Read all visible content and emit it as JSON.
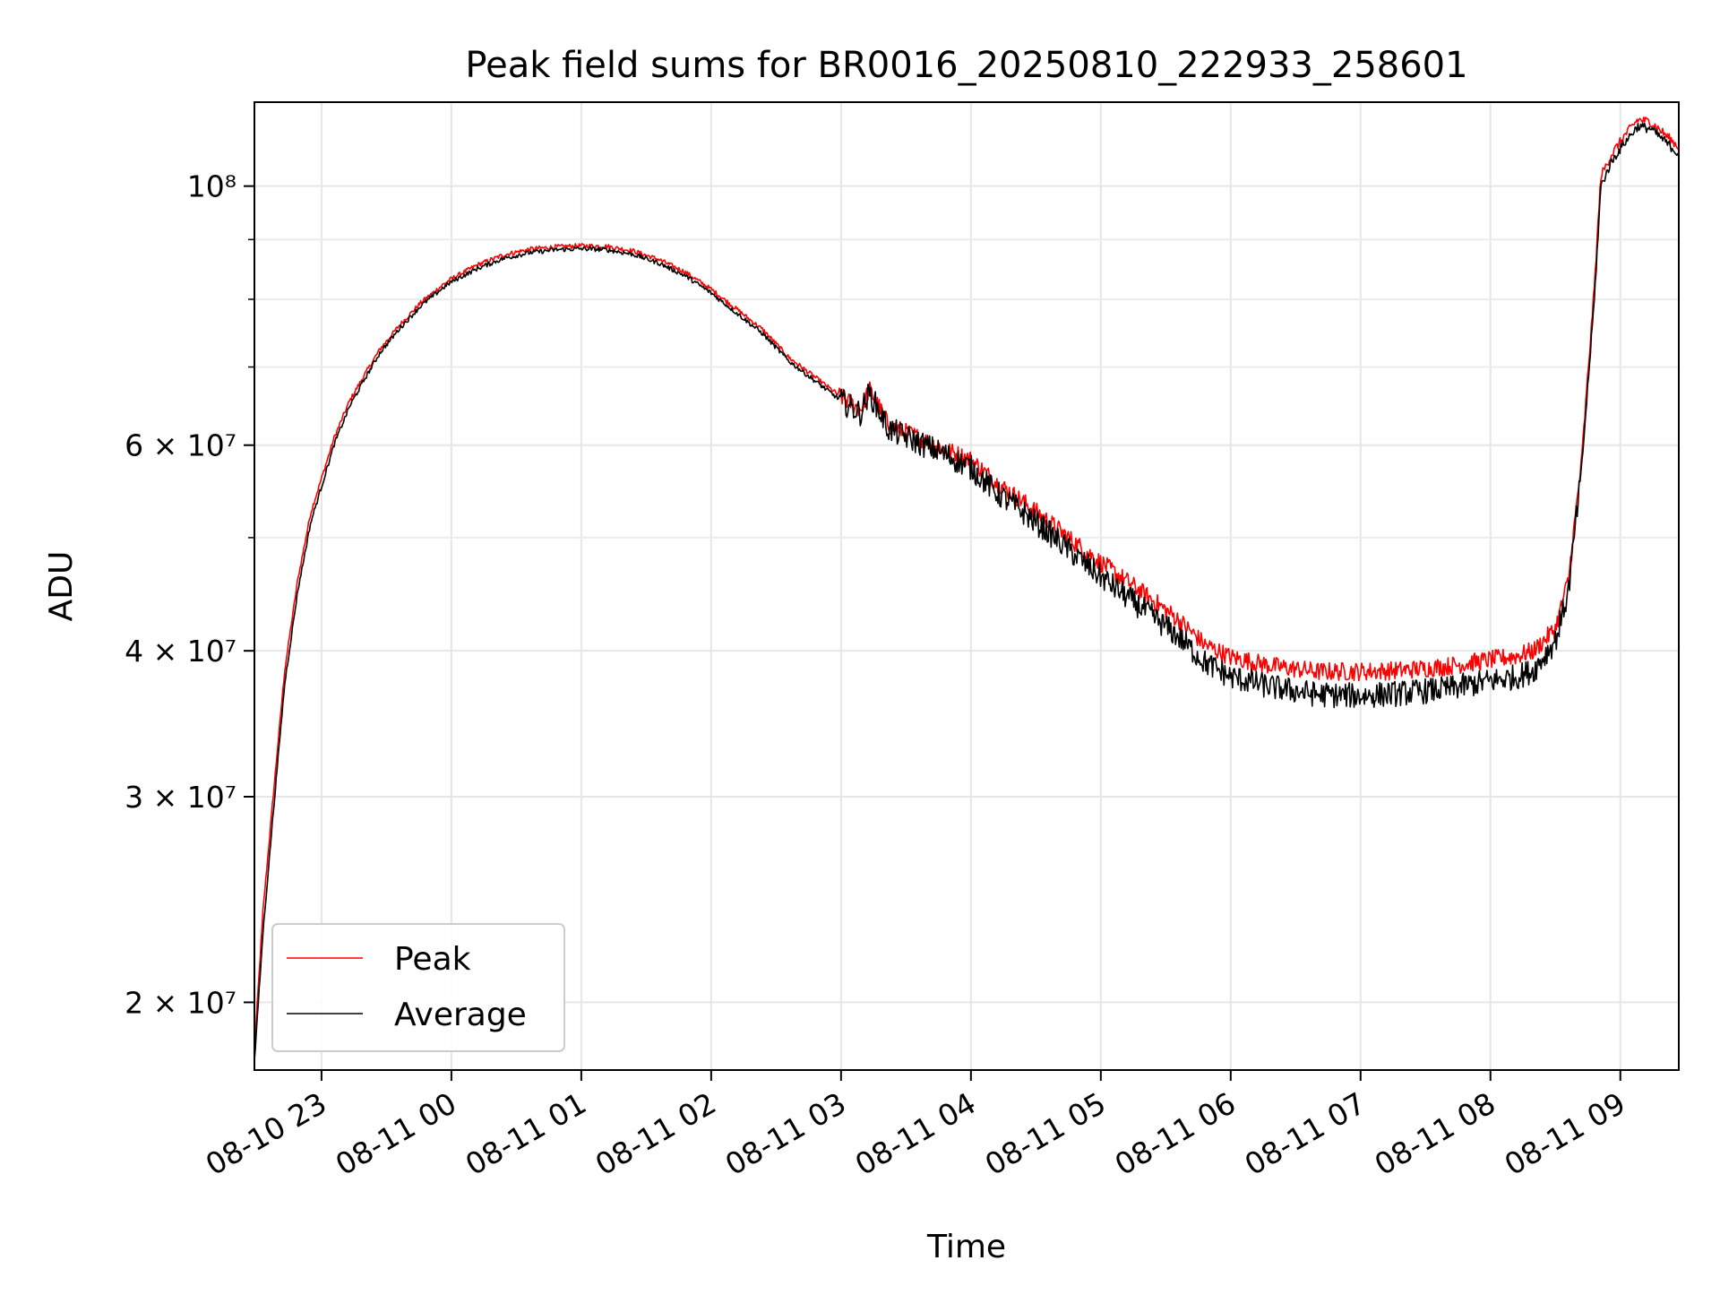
{
  "chart_data": {
    "type": "line",
    "title": "Peak field sums for BR0016_20250810_222933_258601",
    "xlabel": "Time",
    "ylabel": "ADU",
    "y_scale": "log",
    "ylim": [
      17500000,
      118000000
    ],
    "xlim": [
      "2025-08-10 22:29",
      "2025-08-11 09:27"
    ],
    "grid": true,
    "legend": {
      "position": "lower-left",
      "entries": [
        "Peak",
        "Average"
      ]
    },
    "x_ticks": [
      {
        "time": "2025-08-10 23:00",
        "label": "08-10 23"
      },
      {
        "time": "2025-08-11 00:00",
        "label": "08-11 00"
      },
      {
        "time": "2025-08-11 01:00",
        "label": "08-11 01"
      },
      {
        "time": "2025-08-11 02:00",
        "label": "08-11 02"
      },
      {
        "time": "2025-08-11 03:00",
        "label": "08-11 03"
      },
      {
        "time": "2025-08-11 04:00",
        "label": "08-11 04"
      },
      {
        "time": "2025-08-11 05:00",
        "label": "08-11 05"
      },
      {
        "time": "2025-08-11 06:00",
        "label": "08-11 06"
      },
      {
        "time": "2025-08-11 07:00",
        "label": "08-11 07"
      },
      {
        "time": "2025-08-11 08:00",
        "label": "08-11 08"
      },
      {
        "time": "2025-08-11 09:00",
        "label": "08-11 09"
      }
    ],
    "y_ticks_major": [
      {
        "value": 20000000,
        "label": "2 × 10⁷"
      },
      {
        "value": 30000000,
        "label": "3 × 10⁷"
      },
      {
        "value": 40000000,
        "label": "4 × 10⁷"
      },
      {
        "value": 60000000,
        "label": "6 × 10⁷"
      },
      {
        "value": 100000000,
        "label": "10⁸"
      }
    ],
    "y_ticks_minor": [
      50000000,
      70000000,
      80000000,
      90000000
    ],
    "series": [
      {
        "name": "Peak",
        "color": "#ff0000",
        "points": [
          [
            "2025-08-10 22:29",
            18200000
          ],
          [
            "2025-08-10 22:33",
            24000000
          ],
          [
            "2025-08-10 22:38",
            30500000
          ],
          [
            "2025-08-10 22:43",
            38500000
          ],
          [
            "2025-08-10 22:49",
            46000000
          ],
          [
            "2025-08-10 22:55",
            52500000
          ],
          [
            "2025-08-10 23:00",
            56200000
          ],
          [
            "2025-08-10 23:06",
            61000000
          ],
          [
            "2025-08-10 23:13",
            65500000
          ],
          [
            "2025-08-10 23:20",
            69000000
          ],
          [
            "2025-08-10 23:27",
            72500000
          ],
          [
            "2025-08-10 23:36",
            76000000
          ],
          [
            "2025-08-10 23:46",
            79500000
          ],
          [
            "2025-08-10 23:56",
            82300000
          ],
          [
            "2025-08-11 00:00",
            83300000
          ],
          [
            "2025-08-11 00:12",
            85600000
          ],
          [
            "2025-08-11 00:24",
            87300000
          ],
          [
            "2025-08-11 00:36",
            88300000
          ],
          [
            "2025-08-11 00:48",
            88700000
          ],
          [
            "2025-08-11 01:00",
            88900000
          ],
          [
            "2025-08-11 01:12",
            88800000
          ],
          [
            "2025-08-11 01:24",
            88000000
          ],
          [
            "2025-08-11 01:36",
            86500000
          ],
          [
            "2025-08-11 01:48",
            84400000
          ],
          [
            "2025-08-11 02:00",
            81600000
          ],
          [
            "2025-08-11 02:12",
            78400000
          ],
          [
            "2025-08-11 02:24",
            75300000
          ],
          [
            "2025-08-11 02:36",
            71300000
          ],
          [
            "2025-08-11 02:48",
            68600000
          ],
          [
            "2025-08-11 03:00",
            66000000
          ],
          [
            "2025-08-11 03:09",
            64400000
          ],
          [
            "2025-08-11 03:13",
            67000000
          ],
          [
            "2025-08-11 03:16",
            65500000
          ],
          [
            "2025-08-11 03:22",
            62400000
          ],
          [
            "2025-08-11 03:36",
            60900000
          ],
          [
            "2025-08-11 03:48",
            59500000
          ],
          [
            "2025-08-11 04:00",
            58300000
          ],
          [
            "2025-08-11 04:12",
            55700000
          ],
          [
            "2025-08-11 04:24",
            53700000
          ],
          [
            "2025-08-11 04:36",
            51600000
          ],
          [
            "2025-08-11 04:48",
            49500000
          ],
          [
            "2025-08-11 05:00",
            47600000
          ],
          [
            "2025-08-11 05:12",
            45900000
          ],
          [
            "2025-08-11 05:24",
            44200000
          ],
          [
            "2025-08-11 05:36",
            42500000
          ],
          [
            "2025-08-11 05:48",
            40500000
          ],
          [
            "2025-08-11 06:00",
            39500000
          ],
          [
            "2025-08-11 06:20",
            38800000
          ],
          [
            "2025-08-11 06:40",
            38400000
          ],
          [
            "2025-08-11 07:00",
            38400000
          ],
          [
            "2025-08-11 07:20",
            38500000
          ],
          [
            "2025-08-11 07:40",
            38800000
          ],
          [
            "2025-08-11 08:00",
            39300000
          ],
          [
            "2025-08-11 08:12",
            39600000
          ],
          [
            "2025-08-11 08:20",
            40000000
          ],
          [
            "2025-08-11 08:30",
            41800000
          ],
          [
            "2025-08-11 08:36",
            46000000
          ],
          [
            "2025-08-11 08:42",
            58000000
          ],
          [
            "2025-08-11 08:48",
            82000000
          ],
          [
            "2025-08-11 08:51",
            102000000
          ],
          [
            "2025-08-11 08:56",
            106500000
          ],
          [
            "2025-08-11 09:02",
            110500000
          ],
          [
            "2025-08-11 09:08",
            114000000
          ],
          [
            "2025-08-11 09:14",
            113500000
          ],
          [
            "2025-08-11 09:20",
            111000000
          ],
          [
            "2025-08-11 09:27",
            108000000
          ]
        ]
      },
      {
        "name": "Average",
        "color": "#000000",
        "points": [
          [
            "2025-08-10 22:29",
            17800000
          ],
          [
            "2025-08-10 22:33",
            23000000
          ],
          [
            "2025-08-10 22:38",
            29500000
          ],
          [
            "2025-08-10 22:43",
            37500000
          ],
          [
            "2025-08-10 22:49",
            45000000
          ],
          [
            "2025-08-10 22:55",
            51500000
          ],
          [
            "2025-08-10 23:00",
            55300000
          ],
          [
            "2025-08-10 23:06",
            60200000
          ],
          [
            "2025-08-10 23:13",
            64800000
          ],
          [
            "2025-08-10 23:20",
            68400000
          ],
          [
            "2025-08-10 23:27",
            72000000
          ],
          [
            "2025-08-10 23:36",
            75500000
          ],
          [
            "2025-08-10 23:46",
            79000000
          ],
          [
            "2025-08-10 23:56",
            81800000
          ],
          [
            "2025-08-11 00:00",
            82800000
          ],
          [
            "2025-08-11 00:12",
            85000000
          ],
          [
            "2025-08-11 00:24",
            86700000
          ],
          [
            "2025-08-11 00:36",
            87700000
          ],
          [
            "2025-08-11 00:48",
            88200000
          ],
          [
            "2025-08-11 01:00",
            88400000
          ],
          [
            "2025-08-11 01:12",
            88200000
          ],
          [
            "2025-08-11 01:24",
            87400000
          ],
          [
            "2025-08-11 01:36",
            85900000
          ],
          [
            "2025-08-11 01:48",
            83800000
          ],
          [
            "2025-08-11 02:00",
            81000000
          ],
          [
            "2025-08-11 02:12",
            77800000
          ],
          [
            "2025-08-11 02:24",
            74700000
          ],
          [
            "2025-08-11 02:36",
            70800000
          ],
          [
            "2025-08-11 02:48",
            68100000
          ],
          [
            "2025-08-11 03:00",
            65500000
          ],
          [
            "2025-08-11 03:09",
            63900000
          ],
          [
            "2025-08-11 03:13",
            66500000
          ],
          [
            "2025-08-11 03:16",
            65000000
          ],
          [
            "2025-08-11 03:22",
            61900000
          ],
          [
            "2025-08-11 03:36",
            60300000
          ],
          [
            "2025-08-11 03:48",
            58900000
          ],
          [
            "2025-08-11 04:00",
            57400000
          ],
          [
            "2025-08-11 04:12",
            54600000
          ],
          [
            "2025-08-11 04:24",
            52600000
          ],
          [
            "2025-08-11 04:36",
            50500000
          ],
          [
            "2025-08-11 04:48",
            48300000
          ],
          [
            "2025-08-11 05:00",
            46300000
          ],
          [
            "2025-08-11 05:12",
            44500000
          ],
          [
            "2025-08-11 05:24",
            42800000
          ],
          [
            "2025-08-11 05:36",
            41100000
          ],
          [
            "2025-08-11 05:48",
            39100000
          ],
          [
            "2025-08-11 06:00",
            38000000
          ],
          [
            "2025-08-11 06:20",
            37200000
          ],
          [
            "2025-08-11 06:40",
            36700000
          ],
          [
            "2025-08-11 07:00",
            36600000
          ],
          [
            "2025-08-11 07:20",
            36800000
          ],
          [
            "2025-08-11 07:40",
            37100000
          ],
          [
            "2025-08-11 08:00",
            37700000
          ],
          [
            "2025-08-11 08:12",
            38000000
          ],
          [
            "2025-08-11 08:20",
            38500000
          ],
          [
            "2025-08-11 08:30",
            40800000
          ],
          [
            "2025-08-11 08:36",
            45000000
          ],
          [
            "2025-08-11 08:42",
            57000000
          ],
          [
            "2025-08-11 08:48",
            80000000
          ],
          [
            "2025-08-11 08:51",
            100000000
          ],
          [
            "2025-08-11 08:56",
            105000000
          ],
          [
            "2025-08-11 09:02",
            109000000
          ],
          [
            "2025-08-11 09:08",
            112500000
          ],
          [
            "2025-08-11 09:14",
            112000000
          ],
          [
            "2025-08-11 09:20",
            109500000
          ],
          [
            "2025-08-11 09:27",
            106500000
          ]
        ]
      }
    ]
  }
}
